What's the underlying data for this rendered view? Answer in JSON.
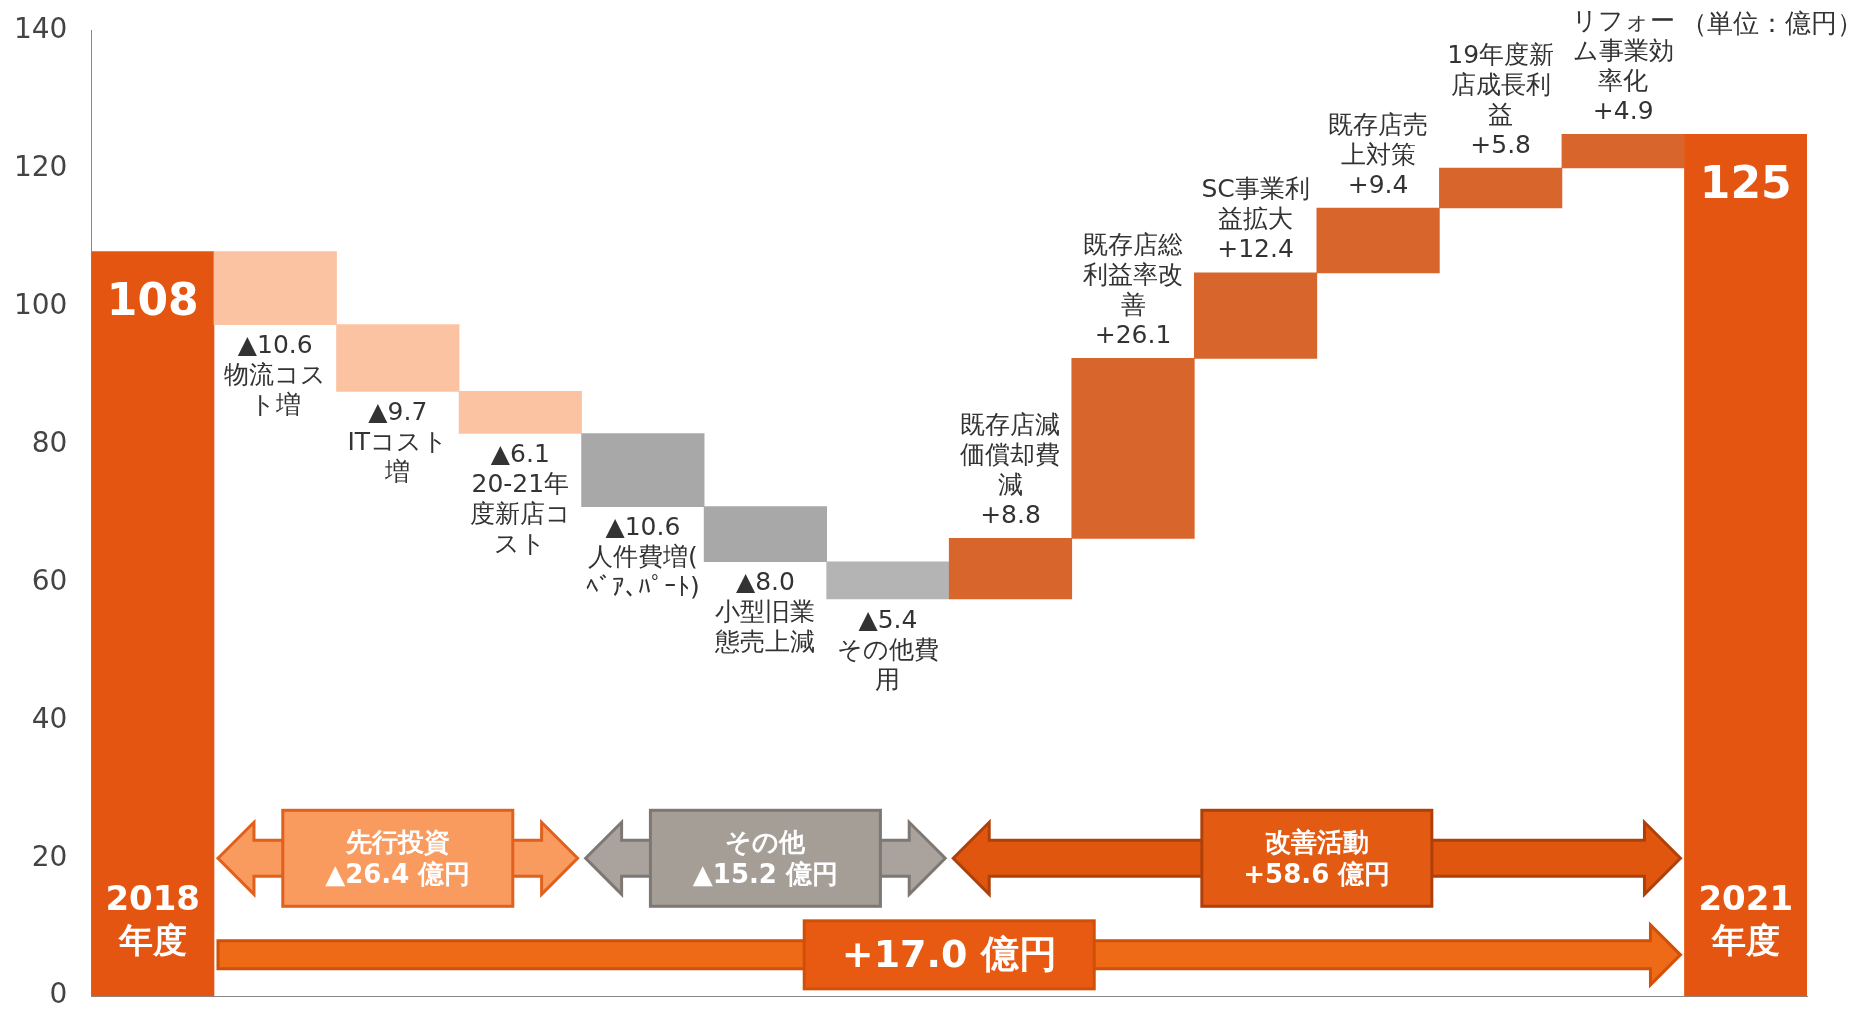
{
  "chart_data": {
    "type": "bar",
    "categories": [
      "2018年度",
      "物流コスト増",
      "ITコスト増",
      "20-21年度新店コスト",
      "人件費増(ﾍﾞｱ､ﾊﾟｰﾄ)",
      "小型旧業態売上減",
      "その他費用",
      "既存店減価償却費減",
      "既存店総利益率改善",
      "SC事業利益拡大",
      "既存店売上対策",
      "19年度新店成長利益",
      "リフォーム事業効率化",
      "2021年度"
    ],
    "values": [
      108,
      -10.6,
      -9.7,
      -6.1,
      -10.6,
      -8.0,
      -5.4,
      8.8,
      26.1,
      12.4,
      9.4,
      5.8,
      4.9,
      125
    ],
    "base": [
      0,
      108,
      97.4,
      87.7,
      81.6,
      71.0,
      63.0,
      57.6,
      66.4,
      92.5,
      104.9,
      114.3,
      120.1,
      0
    ],
    "colors": [
      "#e55512",
      "#fbc3a2",
      "#fbc3a2",
      "#fbc3a2",
      "#a8a8a8",
      "#a8a8a8",
      "#b4b4b4",
      "#d8652c",
      "#d8652c",
      "#d8652c",
      "#d8652c",
      "#d8652c",
      "#d8652c",
      "#e55512"
    ],
    "value_labels": [
      "108",
      "▲10.6",
      "▲9.7",
      "▲6.1",
      "▲10.6",
      "▲8.0",
      "▲5.4",
      "+8.8",
      "+26.1",
      "+12.4",
      "+9.4",
      "+5.8",
      "+4.9",
      "125"
    ],
    "ylim": [
      0,
      140
    ],
    "yticks": [
      0,
      20,
      40,
      60,
      80,
      100,
      120,
      140
    ],
    "tick_labels": "y",
    "annotations": [
      "（単位：億円）",
      "先行投資\n▲26.4 億円",
      "その他\n▲15.2 億円",
      "改善活動\n+58.6 億円",
      "+17.0 億円"
    ]
  }
}
